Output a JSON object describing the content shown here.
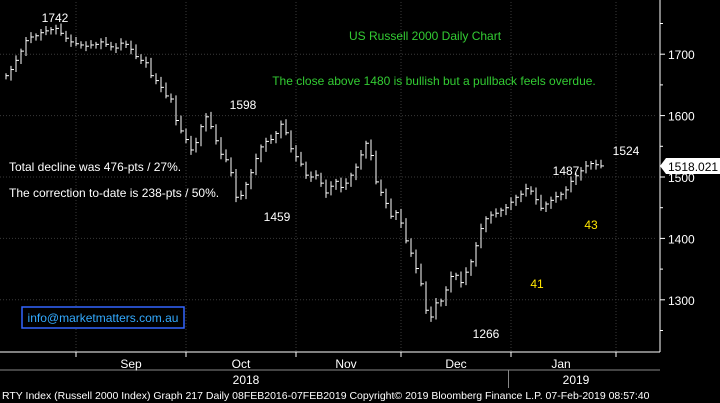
{
  "chart_data": {
    "type": "line",
    "title": "US Russell 2000 Daily Chart",
    "subtitle": "The close above 1480 is bullish but a pullback feels overdue.",
    "ylim": [
      1215,
      1785
    ],
    "y_ticks": [
      1300,
      1400,
      1500,
      1600,
      1700
    ],
    "grid": true,
    "x_labels": [
      {
        "label": "Sep",
        "t": 25
      },
      {
        "label": "Oct",
        "t": 47
      },
      {
        "label": "Nov",
        "t": 68
      },
      {
        "label": "Dec",
        "t": 90
      },
      {
        "label": "Jan",
        "t": 111
      }
    ],
    "years": [
      {
        "label": "2018",
        "t": 48
      },
      {
        "label": "2019",
        "t": 114
      }
    ],
    "last_value": "1518.021",
    "series": [
      {
        "values": [
          1665,
          1675,
          1690,
          1705,
          1722,
          1728,
          1730,
          1735,
          1738,
          1740,
          1742,
          1734,
          1726,
          1720,
          1717,
          1715,
          1713,
          1715,
          1716,
          1720,
          1716,
          1712,
          1710,
          1718,
          1716,
          1708,
          1696,
          1690,
          1686,
          1665,
          1657,
          1646,
          1632,
          1627,
          1592,
          1575,
          1561,
          1544,
          1556,
          1582,
          1598,
          1582,
          1559,
          1537,
          1528,
          1507,
          1467,
          1470,
          1488,
          1507,
          1530,
          1549,
          1558,
          1561,
          1571,
          1586,
          1572,
          1546,
          1533,
          1521,
          1503,
          1500,
          1503,
          1490,
          1474,
          1485,
          1493,
          1483,
          1490,
          1503,
          1516,
          1536,
          1555,
          1535,
          1492,
          1475,
          1457,
          1436,
          1442,
          1425,
          1396,
          1376,
          1351,
          1326,
          1283,
          1272,
          1295,
          1298,
          1316,
          1338,
          1340,
          1328,
          1345,
          1362,
          1388,
          1416,
          1432,
          1438,
          1441,
          1446,
          1450,
          1459,
          1467,
          1472,
          1481,
          1477,
          1463,
          1449,
          1456,
          1462,
          1468,
          1472,
          1479,
          1493,
          1502,
          1510,
          1518,
          1522,
          1520,
          1518
        ]
      }
    ],
    "annotations": [
      {
        "text": "1742",
        "color": "#ffffff"
      },
      {
        "text": "1598",
        "color": "#ffffff"
      },
      {
        "text": "1459",
        "color": "#ffffff"
      },
      {
        "text": "1266",
        "color": "#ffffff"
      },
      {
        "text": "1487",
        "color": "#ffffff"
      },
      {
        "text": "1524",
        "color": "#ffffff"
      },
      {
        "text": "41",
        "color": "#ffe600"
      },
      {
        "text": "43",
        "color": "#ffe600"
      },
      {
        "text": "Total decline was 476-pts / 27%.",
        "color": "#ffffff"
      },
      {
        "text": "The correction to-date is 238-pts / 50%.",
        "color": "#ffffff"
      }
    ],
    "watermark": "info@marketmatters.com.au",
    "footer": "RTY Index (Russell 2000 Index) Graph 217  Daily 08FEB2016-07FEB2019  Copyright© 2019 Bloomberg Finance L.P.   07-Feb-2019 08:57:40"
  },
  "colors": {
    "background": "#000000",
    "line": "#ffffff",
    "grid": "#3a3a3a",
    "title": "#33cc33",
    "subtitle": "#33cc33",
    "annotation_yellow": "#ffe600",
    "watermark_border": "#3366ff",
    "watermark_text": "#33aaff",
    "footer_bg": "#000000"
  }
}
